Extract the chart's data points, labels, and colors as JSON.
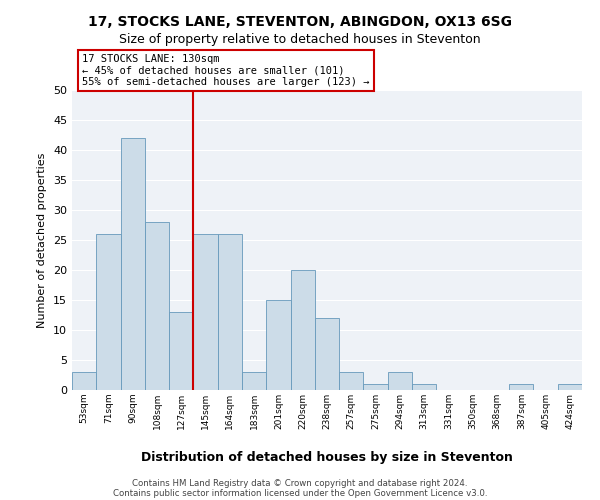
{
  "title": "17, STOCKS LANE, STEVENTON, ABINGDON, OX13 6SG",
  "subtitle": "Size of property relative to detached houses in Steventon",
  "xlabel": "Distribution of detached houses by size in Steventon",
  "ylabel": "Number of detached properties",
  "bin_labels": [
    "53sqm",
    "71sqm",
    "90sqm",
    "108sqm",
    "127sqm",
    "145sqm",
    "164sqm",
    "183sqm",
    "201sqm",
    "220sqm",
    "238sqm",
    "257sqm",
    "275sqm",
    "294sqm",
    "313sqm",
    "331sqm",
    "350sqm",
    "368sqm",
    "387sqm",
    "405sqm",
    "424sqm"
  ],
  "bar_heights": [
    3,
    26,
    42,
    28,
    13,
    26,
    26,
    3,
    15,
    20,
    12,
    3,
    1,
    3,
    1,
    0,
    0,
    0,
    1,
    0,
    1
  ],
  "bar_color": "#ccdce8",
  "bar_edge_color": "#6699bb",
  "vline_x_index": 4,
  "vline_color": "#cc0000",
  "annotation_title": "17 STOCKS LANE: 130sqm",
  "annotation_line1": "← 45% of detached houses are smaller (101)",
  "annotation_line2": "55% of semi-detached houses are larger (123) →",
  "annotation_box_color": "#ffffff",
  "annotation_box_edge": "#cc0000",
  "ylim": [
    0,
    50
  ],
  "yticks": [
    0,
    5,
    10,
    15,
    20,
    25,
    30,
    35,
    40,
    45,
    50
  ],
  "footer_line1": "Contains HM Land Registry data © Crown copyright and database right 2024.",
  "footer_line2": "Contains public sector information licensed under the Open Government Licence v3.0.",
  "background_color": "#eef2f7",
  "grid_color": "#ffffff",
  "title_fontsize": 10,
  "subtitle_fontsize": 9
}
